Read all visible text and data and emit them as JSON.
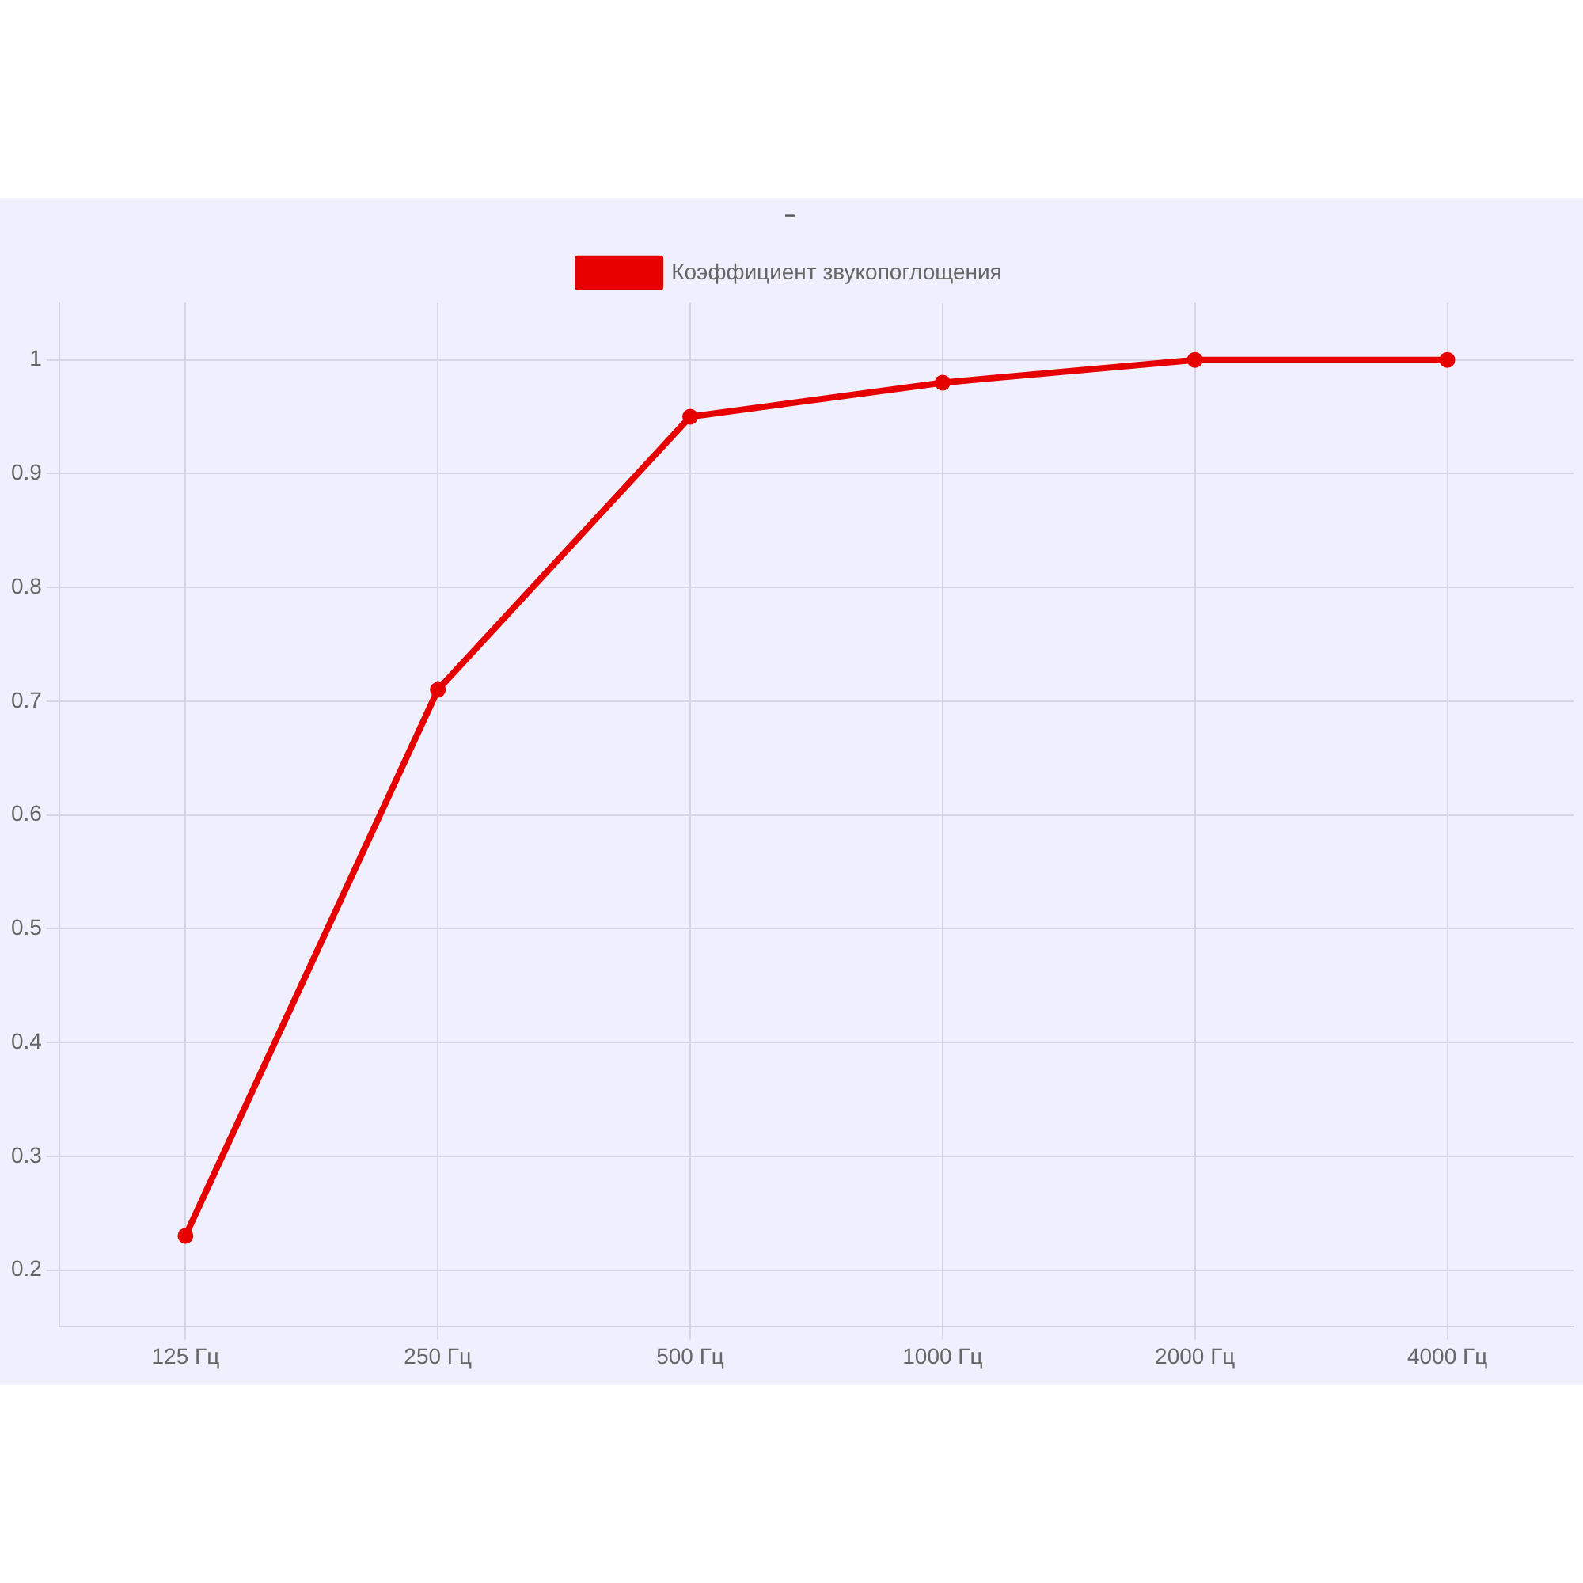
{
  "chart_data": {
    "type": "line",
    "title": "–",
    "categories": [
      "125 Гц",
      "250 Гц",
      "500 Гц",
      "1000 Гц",
      "2000 Гц",
      "4000 Гц"
    ],
    "series": [
      {
        "name": "Коэффициент звукопоглощения",
        "color": "#e60000",
        "values": [
          0.23,
          0.71,
          0.95,
          0.98,
          1,
          1
        ]
      }
    ],
    "ylim": [
      0.15,
      1.05
    ],
    "yticks": [
      0.2,
      0.3,
      0.4,
      0.5,
      0.6,
      0.7,
      0.8,
      0.9,
      1
    ],
    "grid": true,
    "legend": "top",
    "marker": "circle",
    "line_style": "solid"
  }
}
